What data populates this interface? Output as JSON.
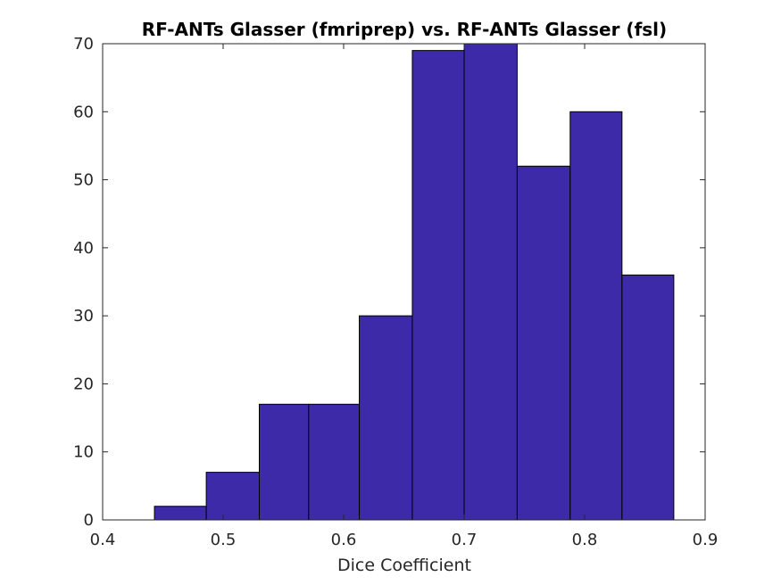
{
  "chart_data": {
    "type": "bar",
    "title": "RF-ANTs Glasser (fmriprep) vs. RF-ANTs Glasser (fsl)",
    "xlabel": "Dice Coefficient",
    "ylabel": "",
    "xlim": [
      0.4,
      0.9
    ],
    "ylim": [
      0,
      70
    ],
    "xticks": [
      0.4,
      0.5,
      0.6,
      0.7,
      0.8,
      0.9
    ],
    "xtick_labels": [
      "0.4",
      "0.5",
      "0.6",
      "0.7",
      "0.8",
      "0.9"
    ],
    "yticks": [
      0,
      10,
      20,
      30,
      40,
      50,
      60,
      70
    ],
    "ytick_labels": [
      "0",
      "10",
      "20",
      "30",
      "40",
      "50",
      "60",
      "70"
    ],
    "bin_edges": [
      0.443,
      0.486,
      0.53,
      0.571,
      0.613,
      0.657,
      0.7,
      0.744,
      0.788,
      0.831,
      0.874
    ],
    "values": [
      2,
      7,
      17,
      17,
      30,
      69,
      70,
      52,
      60,
      36
    ],
    "bar_color": "#3d2aa8",
    "edge_color": "#000000",
    "grid": false
  }
}
